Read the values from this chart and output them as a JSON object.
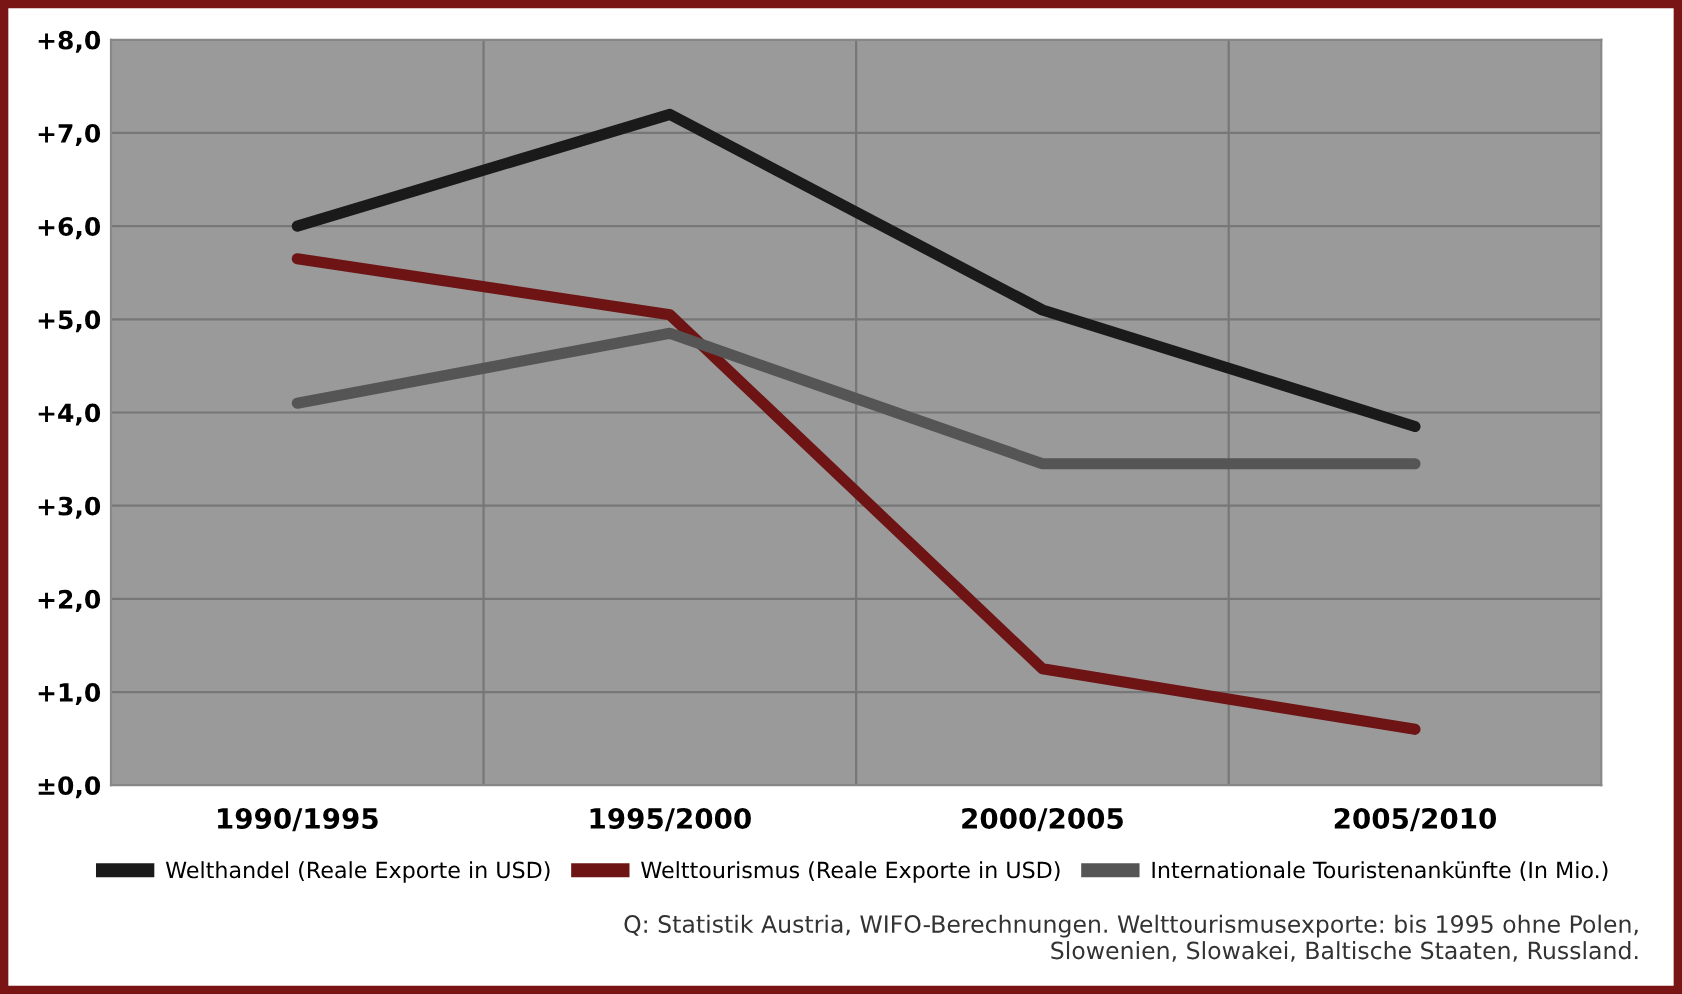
{
  "chart_data": {
    "type": "line",
    "categories": [
      "1990/1995",
      "1995/2000",
      "2000/2005",
      "2005/2010"
    ],
    "series": [
      {
        "name": "Welthandel (Reale Exporte in USD)",
        "color": "#1a1a1a",
        "values": [
          6.0,
          7.2,
          5.1,
          3.85
        ]
      },
      {
        "name": "Welttourismus (Reale Exporte in USD)",
        "color": "#6e1414",
        "values": [
          5.65,
          5.05,
          1.25,
          0.6
        ]
      },
      {
        "name": "Internationale Touristenankünfte (In Mio.)",
        "color": "#555555",
        "values": [
          4.1,
          4.85,
          3.45,
          3.45
        ]
      }
    ],
    "ylim": [
      0,
      8
    ],
    "yticks": [
      {
        "value": 0,
        "label": "±0,0"
      },
      {
        "value": 1,
        "label": "+1,0"
      },
      {
        "value": 2,
        "label": "+2,0"
      },
      {
        "value": 3,
        "label": "+3,0"
      },
      {
        "value": 4,
        "label": "+4,0"
      },
      {
        "value": 5,
        "label": "+5,0"
      },
      {
        "value": 6,
        "label": "+6,0"
      },
      {
        "value": 7,
        "label": "+7,0"
      },
      {
        "value": 8,
        "label": "+8,0"
      }
    ],
    "grid": true,
    "legend": "bottom",
    "marker": "none",
    "line_style": "solid",
    "annotations": [
      "Q: Statistik Austria, WIFO-Berechnungen. Welttourismusexporte: bis 1995 ohne Polen,\nSlowenien, Slowakei, Baltische Staaten, Russland."
    ]
  }
}
